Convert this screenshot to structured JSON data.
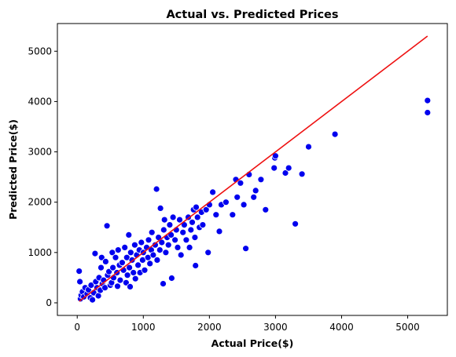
{
  "chart_data": {
    "type": "scatter",
    "title": "Actual vs. Predicted Prices",
    "xlabel": "Actual Price($)",
    "ylabel": "Predicted Price($)",
    "xlim": [
      -300,
      5600
    ],
    "ylim": [
      -250,
      5550
    ],
    "xticks": [
      0,
      1000,
      2000,
      3000,
      4000,
      5000
    ],
    "yticks": [
      0,
      1000,
      2000,
      3000,
      4000,
      5000
    ],
    "grid": false,
    "colors": {
      "points": "#0000ee",
      "point_edge": "#ffffff",
      "line": "#ee1111",
      "axes": "#000000"
    },
    "reference_line": {
      "from": [
        30,
        30
      ],
      "to": [
        5300,
        5300
      ]
    },
    "series": [
      {
        "points": [
          [
            30,
            630
          ],
          [
            40,
            420
          ],
          [
            50,
            80
          ],
          [
            60,
            150
          ],
          [
            80,
            220
          ],
          [
            100,
            120
          ],
          [
            120,
            300
          ],
          [
            150,
            180
          ],
          [
            170,
            260
          ],
          [
            200,
            100
          ],
          [
            210,
            350
          ],
          [
            230,
            60
          ],
          [
            250,
            200
          ],
          [
            270,
            980
          ],
          [
            280,
            420
          ],
          [
            300,
            300
          ],
          [
            320,
            140
          ],
          [
            330,
            500
          ],
          [
            350,
            250
          ],
          [
            360,
            700
          ],
          [
            370,
            900
          ],
          [
            380,
            380
          ],
          [
            400,
            450
          ],
          [
            420,
            300
          ],
          [
            430,
            820
          ],
          [
            450,
            1530
          ],
          [
            460,
            550
          ],
          [
            480,
            620
          ],
          [
            500,
            350
          ],
          [
            520,
            400
          ],
          [
            530,
            1000
          ],
          [
            540,
            700
          ],
          [
            550,
            500
          ],
          [
            580,
            900
          ],
          [
            600,
            600
          ],
          [
            610,
            330
          ],
          [
            620,
            1050
          ],
          [
            640,
            750
          ],
          [
            650,
            450
          ],
          [
            680,
            800
          ],
          [
            700,
            650
          ],
          [
            720,
            1100
          ],
          [
            740,
            400
          ],
          [
            750,
            900
          ],
          [
            760,
            550
          ],
          [
            780,
            1350
          ],
          [
            790,
            700
          ],
          [
            800,
            320
          ],
          [
            810,
            1000
          ],
          [
            830,
            850
          ],
          [
            850,
            600
          ],
          [
            870,
            1150
          ],
          [
            880,
            480
          ],
          [
            900,
            950
          ],
          [
            920,
            750
          ],
          [
            940,
            1050
          ],
          [
            950,
            600
          ],
          [
            970,
            1200
          ],
          [
            990,
            850
          ],
          [
            1000,
            1000
          ],
          [
            1020,
            650
          ],
          [
            1050,
            1100
          ],
          [
            1070,
            900
          ],
          [
            1080,
            1250
          ],
          [
            1100,
            780
          ],
          [
            1120,
            1050
          ],
          [
            1130,
            1400
          ],
          [
            1150,
            950
          ],
          [
            1180,
            1150
          ],
          [
            1200,
            2260
          ],
          [
            1210,
            850
          ],
          [
            1230,
            1300
          ],
          [
            1250,
            1050
          ],
          [
            1260,
            1880
          ],
          [
            1280,
            1200
          ],
          [
            1300,
            380
          ],
          [
            1310,
            1450
          ],
          [
            1320,
            1650
          ],
          [
            1340,
            1000
          ],
          [
            1360,
            1300
          ],
          [
            1380,
            1150
          ],
          [
            1400,
            1550
          ],
          [
            1420,
            1350
          ],
          [
            1430,
            490
          ],
          [
            1450,
            1700
          ],
          [
            1480,
            1250
          ],
          [
            1500,
            1450
          ],
          [
            1520,
            1100
          ],
          [
            1550,
            1650
          ],
          [
            1570,
            950
          ],
          [
            1600,
            1400
          ],
          [
            1620,
            1550
          ],
          [
            1650,
            1250
          ],
          [
            1680,
            1700
          ],
          [
            1700,
            1100
          ],
          [
            1720,
            1450
          ],
          [
            1740,
            1600
          ],
          [
            1760,
            1850
          ],
          [
            1780,
            1300
          ],
          [
            1790,
            740
          ],
          [
            1800,
            1900
          ],
          [
            1820,
            1700
          ],
          [
            1850,
            1500
          ],
          [
            1880,
            1800
          ],
          [
            1900,
            1550
          ],
          [
            1950,
            1850
          ],
          [
            1980,
            1000
          ],
          [
            2000,
            1950
          ],
          [
            2050,
            2200
          ],
          [
            2100,
            1750
          ],
          [
            2150,
            1420
          ],
          [
            2180,
            1950
          ],
          [
            2250,
            2000
          ],
          [
            2350,
            1750
          ],
          [
            2400,
            2450
          ],
          [
            2420,
            2100
          ],
          [
            2470,
            2380
          ],
          [
            2520,
            1950
          ],
          [
            2550,
            1080
          ],
          [
            2600,
            2550
          ],
          [
            2670,
            2100
          ],
          [
            2700,
            2230
          ],
          [
            2780,
            2450
          ],
          [
            2850,
            1850
          ],
          [
            2980,
            2680
          ],
          [
            2990,
            2880
          ],
          [
            3000,
            2920
          ],
          [
            3150,
            2580
          ],
          [
            3200,
            2680
          ],
          [
            3300,
            1570
          ],
          [
            3400,
            2560
          ],
          [
            3500,
            3100
          ],
          [
            3900,
            3350
          ],
          [
            5300,
            4020
          ],
          [
            5300,
            3780
          ]
        ]
      }
    ]
  }
}
